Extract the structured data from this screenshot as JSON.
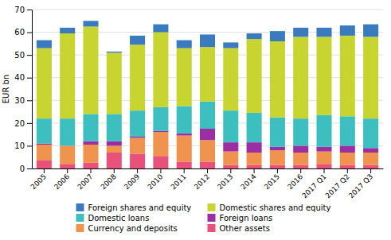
{
  "chart_data": {
    "type": "bar",
    "stacked": true,
    "categories": [
      "2005",
      "2006",
      "2007",
      "2008",
      "2009",
      "2010",
      "2011",
      "2012",
      "2013",
      "2014",
      "2015",
      "2016",
      "2017 Q1",
      "2017 Q2",
      "2017 Q3"
    ],
    "series": [
      {
        "name": "Other assets",
        "color": "#e8517a",
        "values": [
          3.5,
          2.0,
          2.5,
          7.0,
          6.5,
          5.5,
          3.0,
          3.0,
          1.5,
          1.5,
          1.5,
          1.5,
          2.0,
          1.5,
          1.5
        ]
      },
      {
        "name": "Currency and deposits",
        "color": "#f0934e",
        "values": [
          7.0,
          8.0,
          8.0,
          3.0,
          7.0,
          10.5,
          11.5,
          9.5,
          6.0,
          5.5,
          6.5,
          5.5,
          5.5,
          5.5,
          5.5
        ]
      },
      {
        "name": "Foreign loans",
        "color": "#9b2ea3",
        "values": [
          0.5,
          0.0,
          1.5,
          2.0,
          0.5,
          0.5,
          1.0,
          5.0,
          4.0,
          4.5,
          1.5,
          3.0,
          2.0,
          3.0,
          2.0
        ]
      },
      {
        "name": "Domestic loans",
        "color": "#3dbfbf",
        "values": [
          11.0,
          12.0,
          12.0,
          12.0,
          11.5,
          10.5,
          12.0,
          12.0,
          14.0,
          13.0,
          13.0,
          12.0,
          14.0,
          13.0,
          13.0
        ]
      },
      {
        "name": "Domestic shares and equity",
        "color": "#c8d42f",
        "values": [
          31.0,
          37.5,
          38.5,
          27.0,
          29.0,
          33.0,
          25.5,
          24.0,
          27.5,
          32.5,
          33.5,
          36.0,
          34.5,
          35.5,
          36.0
        ]
      },
      {
        "name": "Foreign shares and equity",
        "color": "#3a7abf",
        "values": [
          3.5,
          2.5,
          2.5,
          0.5,
          4.0,
          3.5,
          3.5,
          5.5,
          2.5,
          2.5,
          4.5,
          4.0,
          4.0,
          4.5,
          5.5
        ]
      }
    ],
    "ylabel": "EUR bn",
    "ylim": [
      0,
      70
    ],
    "yticks": [
      0,
      10,
      20,
      30,
      40,
      50,
      60,
      70
    ],
    "grid": true,
    "legend": "bottom"
  }
}
